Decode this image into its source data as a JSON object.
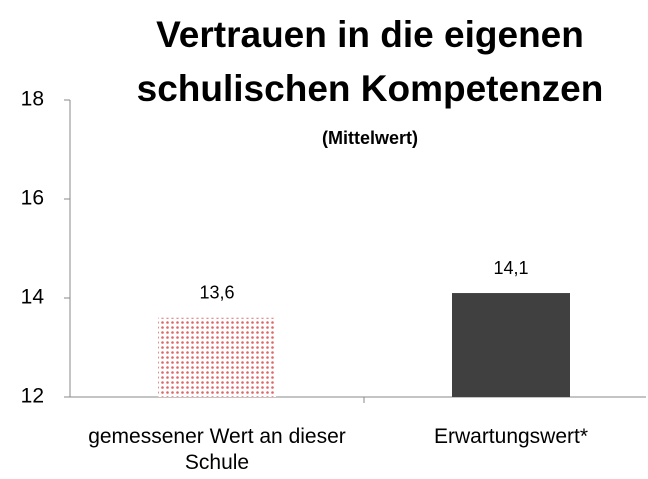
{
  "chart_data": {
    "type": "bar",
    "title": "Vertrauen in die eigenen schulischen Kompetenzen",
    "subtitle": "(Mittelwert)",
    "categories": [
      "gemessener Wert an dieser Schule",
      "Erwartungswert*"
    ],
    "values": [
      13.6,
      14.1
    ],
    "value_labels": [
      "13,6",
      "14,1"
    ],
    "colors": [
      "#e06666",
      "#404040"
    ],
    "fill_styles": [
      "dotted",
      "solid"
    ],
    "ylim": [
      12,
      18
    ],
    "yticks": [
      12,
      14,
      16,
      18
    ]
  }
}
